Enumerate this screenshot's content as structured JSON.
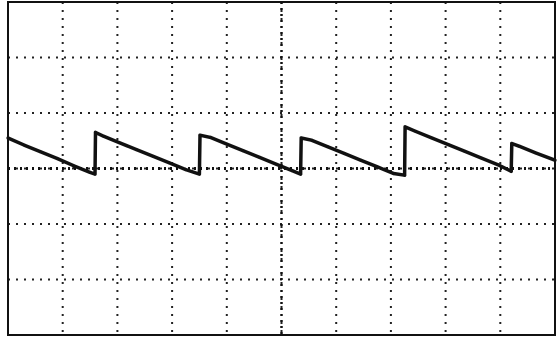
{
  "chart_data": {
    "type": "line",
    "title": "",
    "xlabel": "",
    "ylabel": "",
    "xlim": [
      0,
      10
    ],
    "ylim": [
      -4,
      2
    ],
    "grid": true,
    "grid_divisions": {
      "x": 10,
      "y": 6
    },
    "series": [
      {
        "name": "",
        "color": "#111111",
        "x": [
          0,
          0.3,
          0.6,
          0.9,
          1.2,
          1.5,
          1.59,
          1.6,
          1.75,
          2.05,
          2.35,
          2.65,
          2.95,
          3.25,
          3.5,
          3.51,
          3.7,
          4.0,
          4.3,
          4.6,
          4.9,
          5.2,
          5.35,
          5.36,
          5.55,
          5.85,
          6.15,
          6.45,
          6.75,
          7.05,
          7.25,
          7.26,
          7.45,
          7.75,
          8.05,
          8.35,
          8.65,
          8.95,
          9.2,
          9.21,
          9.35,
          9.65,
          10.0
        ],
        "y": [
          -0.45,
          -0.58,
          -0.7,
          -0.82,
          -0.95,
          -1.07,
          -1.1,
          -0.35,
          -0.42,
          -0.54,
          -0.66,
          -0.78,
          -0.9,
          -1.02,
          -1.1,
          -0.4,
          -0.44,
          -0.56,
          -0.68,
          -0.8,
          -0.92,
          -1.04,
          -1.1,
          -0.45,
          -0.49,
          -0.61,
          -0.73,
          -0.85,
          -0.97,
          -1.09,
          -1.12,
          -0.25,
          -0.33,
          -0.45,
          -0.57,
          -0.69,
          -0.81,
          -0.93,
          -1.05,
          -0.55,
          -0.6,
          -0.72,
          -0.85
        ]
      }
    ]
  }
}
